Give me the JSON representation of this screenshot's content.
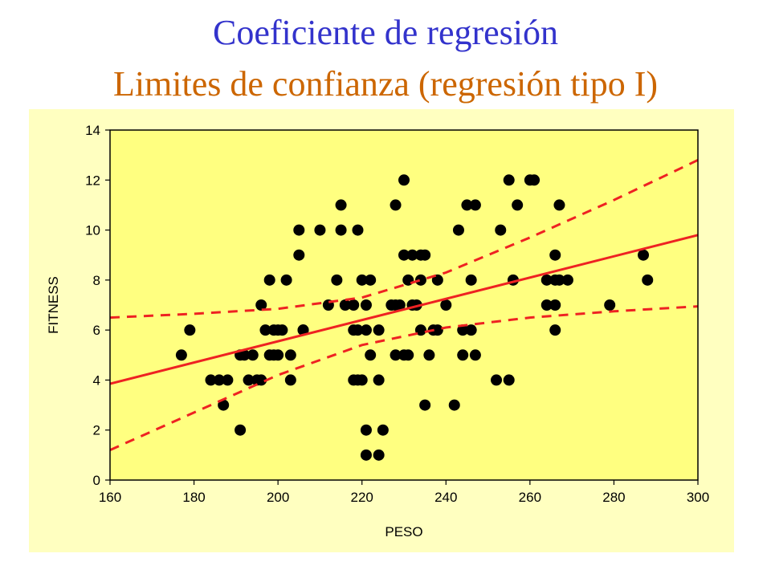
{
  "slide": {
    "title": "Coeficiente de regresión",
    "subtitle": "Limites de confianza (regresión tipo I)"
  },
  "colors": {
    "title": "#3333cc",
    "subtitle": "#cc6600",
    "panel_background": "#ffffc0",
    "plot_background": "#ffff80",
    "points": "#000000",
    "regression_line": "#ee2222"
  },
  "chart_data": {
    "type": "scatter",
    "title": "",
    "xlabel": "PESO",
    "ylabel": "FITNESS",
    "xlim": [
      160,
      300
    ],
    "ylim": [
      0,
      14
    ],
    "xticks": [
      160,
      180,
      200,
      220,
      240,
      260,
      280,
      300
    ],
    "yticks": [
      0,
      2,
      4,
      6,
      8,
      10,
      12,
      14
    ],
    "grid": false,
    "legend": "none",
    "points": [
      {
        "x": 177,
        "y": 5
      },
      {
        "x": 179,
        "y": 6
      },
      {
        "x": 184,
        "y": 4
      },
      {
        "x": 186,
        "y": 4
      },
      {
        "x": 187,
        "y": 3
      },
      {
        "x": 188,
        "y": 4
      },
      {
        "x": 191,
        "y": 2
      },
      {
        "x": 191,
        "y": 5
      },
      {
        "x": 192,
        "y": 5
      },
      {
        "x": 193,
        "y": 4
      },
      {
        "x": 194,
        "y": 5
      },
      {
        "x": 195,
        "y": 4
      },
      {
        "x": 196,
        "y": 7
      },
      {
        "x": 196,
        "y": 4
      },
      {
        "x": 197,
        "y": 6
      },
      {
        "x": 198,
        "y": 8
      },
      {
        "x": 198,
        "y": 5
      },
      {
        "x": 199,
        "y": 6
      },
      {
        "x": 199,
        "y": 5
      },
      {
        "x": 200,
        "y": 5
      },
      {
        "x": 200,
        "y": 6
      },
      {
        "x": 201,
        "y": 6
      },
      {
        "x": 202,
        "y": 8
      },
      {
        "x": 203,
        "y": 5
      },
      {
        "x": 203,
        "y": 4
      },
      {
        "x": 205,
        "y": 10
      },
      {
        "x": 205,
        "y": 9
      },
      {
        "x": 206,
        "y": 6
      },
      {
        "x": 206,
        "y": 6
      },
      {
        "x": 210,
        "y": 10
      },
      {
        "x": 212,
        "y": 7
      },
      {
        "x": 214,
        "y": 8
      },
      {
        "x": 215,
        "y": 11
      },
      {
        "x": 215,
        "y": 10
      },
      {
        "x": 216,
        "y": 7
      },
      {
        "x": 218,
        "y": 7
      },
      {
        "x": 218,
        "y": 6
      },
      {
        "x": 218,
        "y": 4
      },
      {
        "x": 219,
        "y": 10
      },
      {
        "x": 219,
        "y": 4
      },
      {
        "x": 219,
        "y": 6
      },
      {
        "x": 220,
        "y": 8
      },
      {
        "x": 220,
        "y": 4
      },
      {
        "x": 221,
        "y": 6
      },
      {
        "x": 221,
        "y": 2
      },
      {
        "x": 221,
        "y": 7
      },
      {
        "x": 221,
        "y": 1
      },
      {
        "x": 222,
        "y": 8
      },
      {
        "x": 222,
        "y": 5
      },
      {
        "x": 224,
        "y": 1
      },
      {
        "x": 224,
        "y": 4
      },
      {
        "x": 224,
        "y": 6
      },
      {
        "x": 225,
        "y": 2
      },
      {
        "x": 227,
        "y": 7
      },
      {
        "x": 228,
        "y": 11
      },
      {
        "x": 228,
        "y": 5
      },
      {
        "x": 228,
        "y": 7
      },
      {
        "x": 229,
        "y": 7
      },
      {
        "x": 230,
        "y": 5
      },
      {
        "x": 230,
        "y": 12
      },
      {
        "x": 230,
        "y": 9
      },
      {
        "x": 231,
        "y": 8
      },
      {
        "x": 231,
        "y": 5
      },
      {
        "x": 232,
        "y": 7
      },
      {
        "x": 232,
        "y": 9
      },
      {
        "x": 233,
        "y": 7
      },
      {
        "x": 234,
        "y": 9
      },
      {
        "x": 234,
        "y": 8
      },
      {
        "x": 234,
        "y": 6
      },
      {
        "x": 235,
        "y": 9
      },
      {
        "x": 235,
        "y": 3
      },
      {
        "x": 236,
        "y": 5
      },
      {
        "x": 237,
        "y": 6
      },
      {
        "x": 238,
        "y": 8
      },
      {
        "x": 238,
        "y": 6
      },
      {
        "x": 240,
        "y": 7
      },
      {
        "x": 242,
        "y": 3
      },
      {
        "x": 243,
        "y": 10
      },
      {
        "x": 244,
        "y": 5
      },
      {
        "x": 244,
        "y": 6
      },
      {
        "x": 245,
        "y": 11
      },
      {
        "x": 246,
        "y": 8
      },
      {
        "x": 246,
        "y": 6
      },
      {
        "x": 247,
        "y": 5
      },
      {
        "x": 247,
        "y": 11
      },
      {
        "x": 252,
        "y": 4
      },
      {
        "x": 253,
        "y": 10
      },
      {
        "x": 255,
        "y": 12
      },
      {
        "x": 255,
        "y": 4
      },
      {
        "x": 256,
        "y": 8
      },
      {
        "x": 257,
        "y": 11
      },
      {
        "x": 260,
        "y": 12
      },
      {
        "x": 261,
        "y": 12
      },
      {
        "x": 264,
        "y": 8
      },
      {
        "x": 264,
        "y": 7
      },
      {
        "x": 266,
        "y": 7
      },
      {
        "x": 266,
        "y": 9
      },
      {
        "x": 266,
        "y": 8
      },
      {
        "x": 266,
        "y": 6
      },
      {
        "x": 267,
        "y": 11
      },
      {
        "x": 267,
        "y": 8
      },
      {
        "x": 269,
        "y": 8
      },
      {
        "x": 279,
        "y": 7
      },
      {
        "x": 287,
        "y": 9
      },
      {
        "x": 288,
        "y": 8
      }
    ],
    "regression_line": {
      "x": [
        160,
        300
      ],
      "y": [
        3.85,
        9.8
      ]
    },
    "confidence_upper": {
      "x": [
        160,
        180,
        200,
        220,
        240,
        260,
        280,
        300
      ],
      "y": [
        6.5,
        6.65,
        6.85,
        7.3,
        8.3,
        9.7,
        11.2,
        12.8
      ]
    },
    "confidence_lower": {
      "x": [
        160,
        180,
        200,
        220,
        240,
        260,
        280,
        300
      ],
      "y": [
        1.2,
        2.7,
        4.2,
        5.4,
        6.1,
        6.5,
        6.75,
        6.95
      ]
    }
  }
}
